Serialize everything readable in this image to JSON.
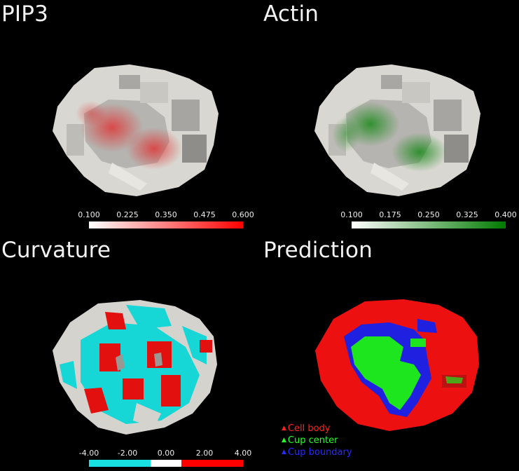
{
  "panels": {
    "pip3": {
      "title": "PIP3",
      "colorbar": {
        "ticks": [
          "0.100",
          "0.225",
          "0.350",
          "0.475",
          "0.600"
        ],
        "min_color": "#ffffff",
        "max_color": "#ff0000"
      }
    },
    "actin": {
      "title": "Actin",
      "colorbar": {
        "ticks": [
          "0.100",
          "0.175",
          "0.250",
          "0.325",
          "0.400"
        ],
        "min_color": "#ffffff",
        "max_color": "#007a00"
      }
    },
    "curvature": {
      "title": "Curvature",
      "colorbar": {
        "ticks": [
          "-4.00",
          "-2.00",
          "0.00",
          "2.00",
          "4.00"
        ],
        "neg_color": "#19e0e0",
        "zero_color": "#ffffff",
        "pos_color": "#ff0000"
      }
    },
    "prediction": {
      "title": "Prediction",
      "legend": [
        {
          "label": "Cell body",
          "color": "#ff2020",
          "icon": "triangle-icon"
        },
        {
          "label": "Cup center",
          "color": "#22ff22",
          "icon": "triangle-icon"
        },
        {
          "label": "Cup boundary",
          "color": "#2a2aff",
          "icon": "triangle-icon"
        }
      ]
    }
  },
  "colors": {
    "background": "#000000",
    "cell_surface": "#dcdad4",
    "cell_shadow": "#9a9894"
  }
}
